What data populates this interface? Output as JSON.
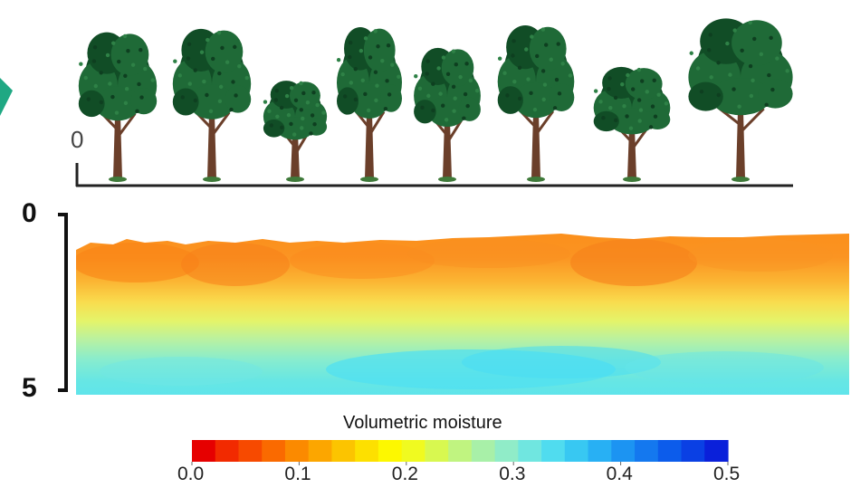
{
  "figure": {
    "surface_label": "0",
    "depth_top_label": "0",
    "depth_bottom_label": "5",
    "tree_count": 8
  },
  "colorbar": {
    "title": "Volumetric moisture",
    "ticks": [
      "0.0",
      "0.1",
      "0.2",
      "0.3",
      "0.4",
      "0.5"
    ],
    "colors": [
      "#e60000",
      "#f22a00",
      "#f74a00",
      "#fa6a00",
      "#fb8a00",
      "#fca600",
      "#fcc400",
      "#fde000",
      "#fdf800",
      "#f0fa20",
      "#d8f850",
      "#c0f480",
      "#a8f0a8",
      "#90ecc8",
      "#70e6e0",
      "#50dcef",
      "#38c8f2",
      "#28b0f4",
      "#1c94f2",
      "#1478ef",
      "#0c5ceb",
      "#0a40e4",
      "#0a20da"
    ]
  },
  "colors": {
    "foliage": "#1f6a37",
    "foliage_dark": "#114d26",
    "trunk": "#6b3f2a",
    "accent": "#1fa883"
  }
}
